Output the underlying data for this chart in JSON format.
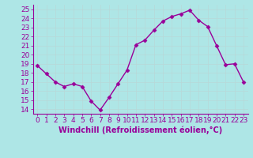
{
  "x": [
    0,
    1,
    2,
    3,
    4,
    5,
    6,
    7,
    8,
    9,
    10,
    11,
    12,
    13,
    14,
    15,
    16,
    17,
    18,
    19,
    20,
    21,
    22,
    23
  ],
  "y": [
    18.8,
    17.9,
    17.0,
    16.5,
    16.8,
    16.5,
    14.9,
    13.9,
    15.3,
    16.8,
    18.3,
    21.1,
    21.6,
    22.7,
    23.7,
    24.2,
    24.5,
    24.9,
    23.8,
    23.1,
    21.0,
    18.9,
    19.0,
    17.0
  ],
  "line_color": "#990099",
  "marker": "D",
  "marker_size": 2.5,
  "bg_color": "#aee6e6",
  "grid_color": "#b8d8d8",
  "xlabel": "Windchill (Refroidissement éolien,°C)",
  "tick_color": "#990099",
  "ylim": [
    13.5,
    25.5
  ],
  "yticks": [
    14,
    15,
    16,
    17,
    18,
    19,
    20,
    21,
    22,
    23,
    24,
    25
  ],
  "xlim": [
    -0.5,
    23.5
  ],
  "xticks": [
    0,
    1,
    2,
    3,
    4,
    5,
    6,
    7,
    8,
    9,
    10,
    11,
    12,
    13,
    14,
    15,
    16,
    17,
    18,
    19,
    20,
    21,
    22,
    23
  ],
  "xtick_labels": [
    "0",
    "1",
    "2",
    "3",
    "4",
    "5",
    "6",
    "7",
    "8",
    "9",
    "10",
    "11",
    "12",
    "13",
    "14",
    "15",
    "16",
    "17",
    "18",
    "19",
    "20",
    "21",
    "22",
    "23"
  ],
  "spine_color": "#990099",
  "font_size": 6.5,
  "xlabel_fontsize": 7,
  "linewidth": 1.0
}
